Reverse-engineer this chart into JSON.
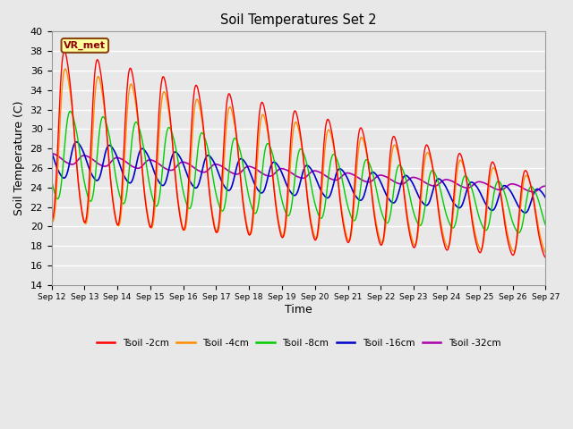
{
  "title": "Soil Temperatures Set 2",
  "xlabel": "Time",
  "ylabel": "Soil Temperature (C)",
  "ylim": [
    14,
    40
  ],
  "yticks": [
    14,
    16,
    18,
    20,
    22,
    24,
    26,
    28,
    30,
    32,
    34,
    36,
    38,
    40
  ],
  "plot_bg_color": "#e8e8e8",
  "legend_label": "VR_met",
  "series_colors": {
    "Tsoil -2cm": "#ff0000",
    "Tsoil -4cm": "#ff8c00",
    "Tsoil -8cm": "#00cc00",
    "Tsoil -16cm": "#0000cc",
    "Tsoil -32cm": "#aa00aa"
  },
  "x_tick_days": [
    12,
    13,
    14,
    15,
    16,
    17,
    18,
    19,
    20,
    21,
    22,
    23,
    24,
    25,
    26,
    27
  ]
}
